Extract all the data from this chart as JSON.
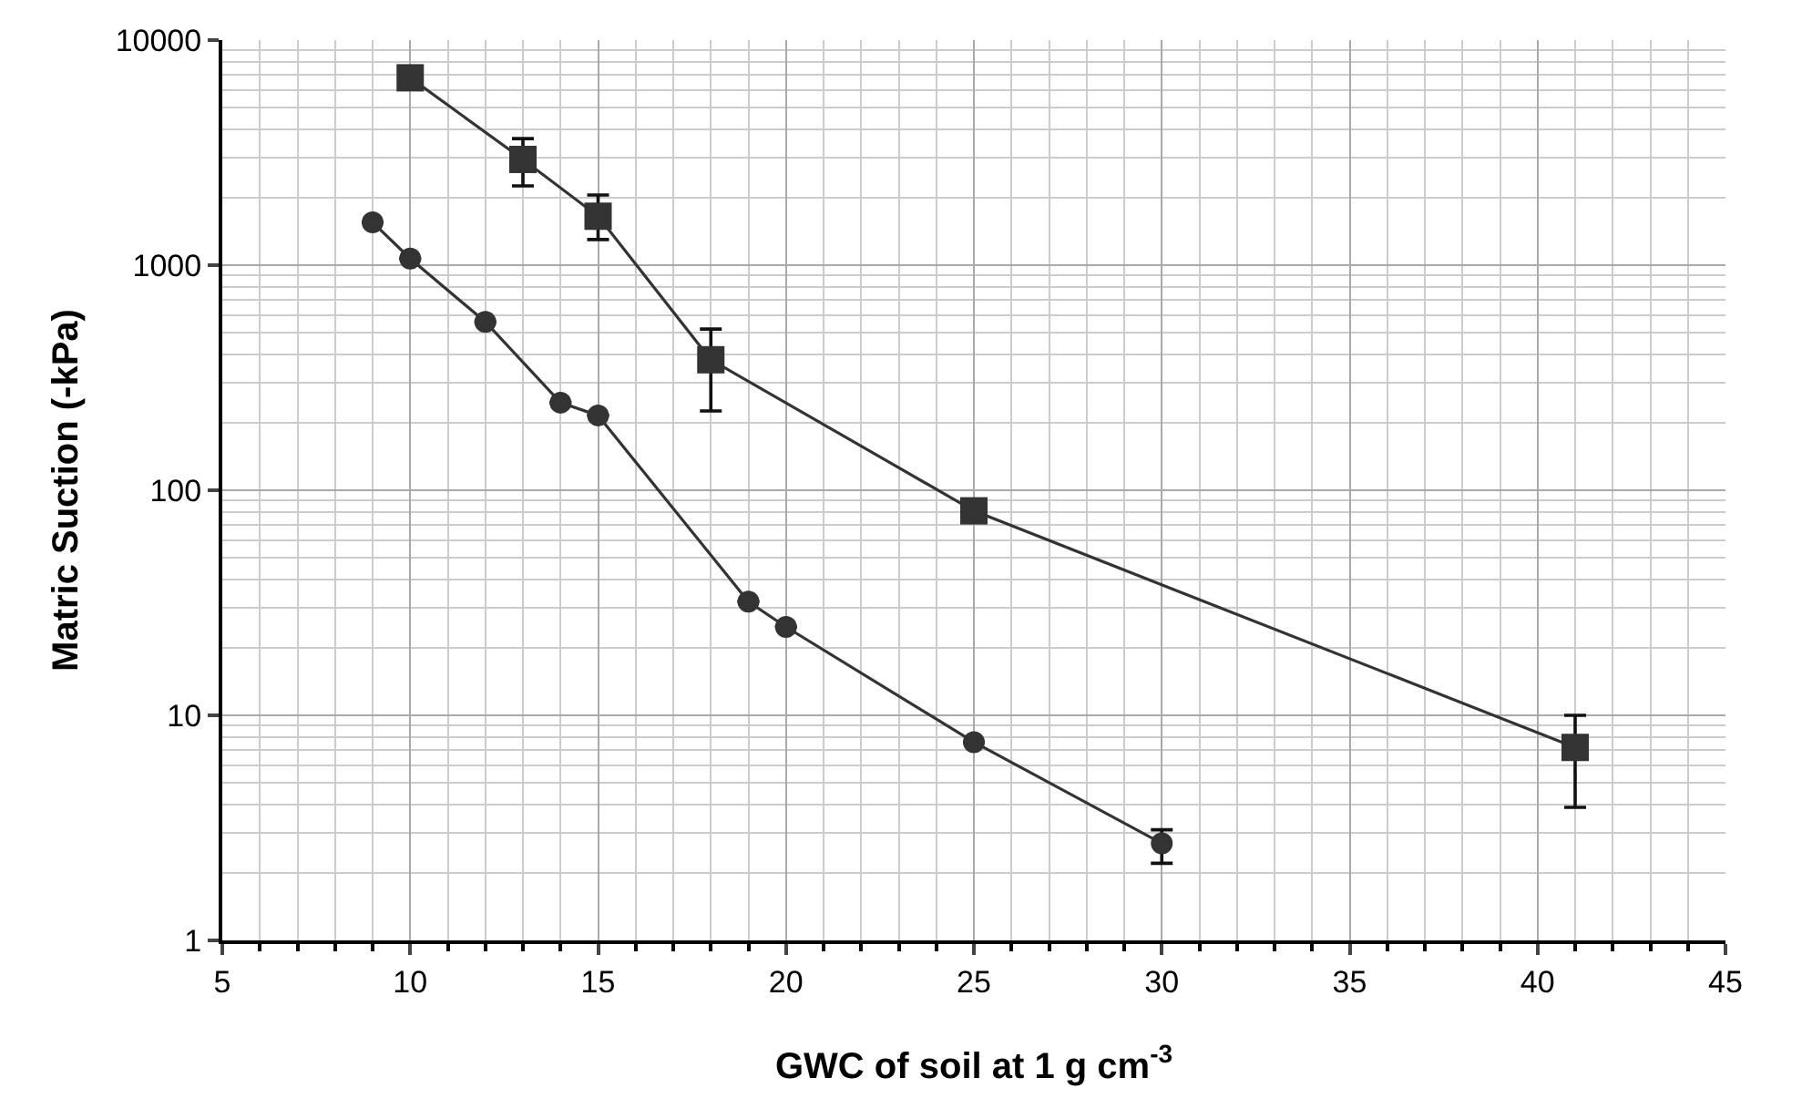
{
  "chart_data": {
    "type": "line",
    "xlabel": "GWC of soil at 1 g cm$^{-3}$",
    "ylabel": "Matric Suction (-kPa)",
    "log": "y",
    "grid": true,
    "line_style": "solid",
    "xlim": [
      5,
      45
    ],
    "xticks": [
      5,
      10,
      15,
      20,
      25,
      30,
      35,
      40,
      45
    ],
    "ylim": [
      1,
      10000
    ],
    "yticks": [
      1,
      10,
      100,
      1000,
      10000
    ],
    "series": [
      {
        "color": "#333333",
        "marker": "square",
        "x": [
          10,
          13,
          15,
          18,
          25,
          41
        ],
        "values": [
          6800,
          2950,
          1650,
          380,
          81,
          7.2
        ],
        "errors": [
          null,
          [
            2250,
            3650
          ],
          [
            1300,
            2050
          ],
          [
            225,
            520
          ],
          null,
          [
            3.9,
            10
          ]
        ]
      },
      {
        "color": "#333333",
        "marker": "circle",
        "x": [
          9,
          10,
          12,
          14,
          15,
          19,
          20,
          25,
          30
        ],
        "values": [
          1550,
          1070,
          560,
          245,
          215,
          32,
          24.7,
          7.6,
          2.7
        ],
        "errors": [
          null,
          null,
          null,
          null,
          null,
          null,
          null,
          null,
          [
            2.2,
            3.1
          ]
        ]
      }
    ]
  }
}
